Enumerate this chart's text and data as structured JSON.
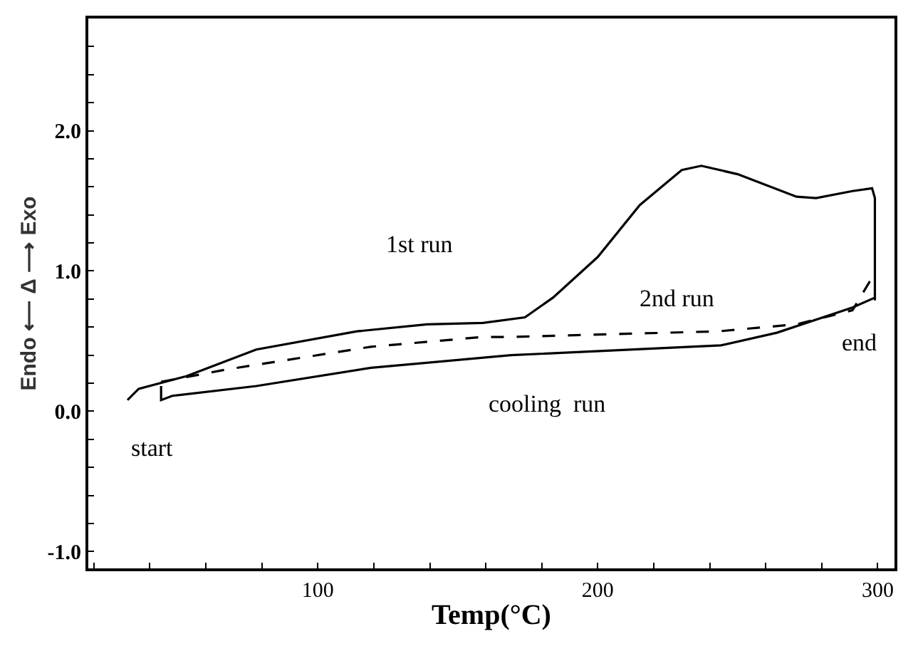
{
  "chart_data": {
    "type": "line",
    "xlabel": "Temp(°C)",
    "ylabel": "Endo ⟵ Δ ⟶ Exo",
    "xlim": [
      18,
      306
    ],
    "ylim": [
      -1.12,
      2.8
    ],
    "xticks": [
      {
        "value": 20,
        "label": null
      },
      {
        "value": 40,
        "label": null
      },
      {
        "value": 60,
        "label": null
      },
      {
        "value": 80,
        "label": null
      },
      100,
      {
        "value": 120,
        "label": null
      },
      {
        "value": 140,
        "label": null
      },
      {
        "value": 160,
        "label": null
      },
      {
        "value": 180,
        "label": null
      },
      200,
      {
        "value": 220,
        "label": null
      },
      {
        "value": 240,
        "label": null
      },
      {
        "value": 260,
        "label": null
      },
      {
        "value": 280,
        "label": null
      },
      300
    ],
    "yticks": [
      {
        "value": -1.0,
        "label": "-1.0"
      },
      {
        "value": -0.8,
        "label": null
      },
      {
        "value": -0.6,
        "label": null
      },
      {
        "value": -0.4,
        "label": null
      },
      {
        "value": -0.2,
        "label": null
      },
      {
        "value": 0.0,
        "label": "0.0"
      },
      {
        "value": 0.2,
        "label": null
      },
      {
        "value": 0.4,
        "label": null
      },
      {
        "value": 0.6,
        "label": null
      },
      {
        "value": 0.8,
        "label": null
      },
      {
        "value": 1.0,
        "label": "1.0"
      },
      {
        "value": 1.2,
        "label": null
      },
      {
        "value": 1.4,
        "label": null
      },
      {
        "value": 1.6,
        "label": null
      },
      {
        "value": 1.8,
        "label": null
      },
      {
        "value": 2.0,
        "label": "2.0"
      },
      {
        "value": 2.2,
        "label": null
      },
      {
        "value": 2.4,
        "label": null
      },
      {
        "value": 2.6,
        "label": null
      }
    ],
    "legend": false,
    "marker": "none",
    "series": [
      {
        "name": "1st run",
        "color": "#000000",
        "line_style": "solid",
        "x": [
          32,
          36,
          53,
          78,
          114,
          139,
          159,
          174,
          184,
          200,
          215,
          230,
          237,
          250,
          271,
          278,
          291,
          298,
          299,
          299
        ],
        "values": [
          0.08,
          0.16,
          0.25,
          0.44,
          0.57,
          0.62,
          0.63,
          0.67,
          0.81,
          1.1,
          1.47,
          1.72,
          1.75,
          1.69,
          1.53,
          1.52,
          1.57,
          1.59,
          1.52,
          0.79
        ]
      },
      {
        "name": "2nd run",
        "color": "#000000",
        "line_style": "dashed",
        "x": [
          44,
          68,
          119,
          159,
          169,
          243,
          271,
          291,
          297,
          299,
          299
        ],
        "values": [
          0.21,
          0.3,
          0.46,
          0.53,
          0.53,
          0.57,
          0.62,
          0.72,
          0.92,
          0.89,
          0.83
        ]
      },
      {
        "name": "cooling  run",
        "color": "#000000",
        "line_style": "solid",
        "x": [
          44,
          44,
          48,
          78,
          119,
          169,
          244,
          264,
          291,
          299
        ],
        "values": [
          0.18,
          0.08,
          0.11,
          0.18,
          0.31,
          0.4,
          0.47,
          0.56,
          0.74,
          0.81
        ]
      }
    ],
    "annotations": [
      "start",
      "end"
    ]
  }
}
